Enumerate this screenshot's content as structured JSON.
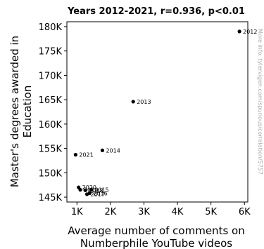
{
  "chart_data": {
    "type": "scatter",
    "title": "Years 2012-2021, r=0.936, p<0.01",
    "xlabel": [
      "Average number of comments on",
      "Numberphile YouTube videos"
    ],
    "ylabel": [
      "Master's degrees awarded in",
      "Education"
    ],
    "xlim": [
      700,
      6100
    ],
    "ylim": [
      144000,
      181000
    ],
    "x_ticks": [
      1000,
      2000,
      3000,
      4000,
      5000,
      6000
    ],
    "x_tick_labels": [
      "1K",
      "2K",
      "3K",
      "4K",
      "5K",
      "6K"
    ],
    "y_ticks": [
      145000,
      150000,
      155000,
      160000,
      165000,
      170000,
      175000,
      180000
    ],
    "y_tick_labels": [
      "145K",
      "150K",
      "155K",
      "160K",
      "165K",
      "170K",
      "175K",
      "180K"
    ],
    "grid": false,
    "points": [
      {
        "label": "2012",
        "x": 5850,
        "y": 179000
      },
      {
        "label": "2013",
        "x": 2680,
        "y": 164600
      },
      {
        "label": "2014",
        "x": 1760,
        "y": 154600
      },
      {
        "label": "2015",
        "x": 1420,
        "y": 146500
      },
      {
        "label": "2016",
        "x": 1380,
        "y": 145800
      },
      {
        "label": "2017",
        "x": 1300,
        "y": 145600
      },
      {
        "label": "2018",
        "x": 1250,
        "y": 146400
      },
      {
        "label": "2019",
        "x": 1100,
        "y": 146500
      },
      {
        "label": "2020",
        "x": 1050,
        "y": 147000
      },
      {
        "label": "2021",
        "x": 960,
        "y": 153700
      }
    ],
    "marker_color": "#000000",
    "side_note": "More info: tylervigen.com/spurious/correlation/5757"
  }
}
